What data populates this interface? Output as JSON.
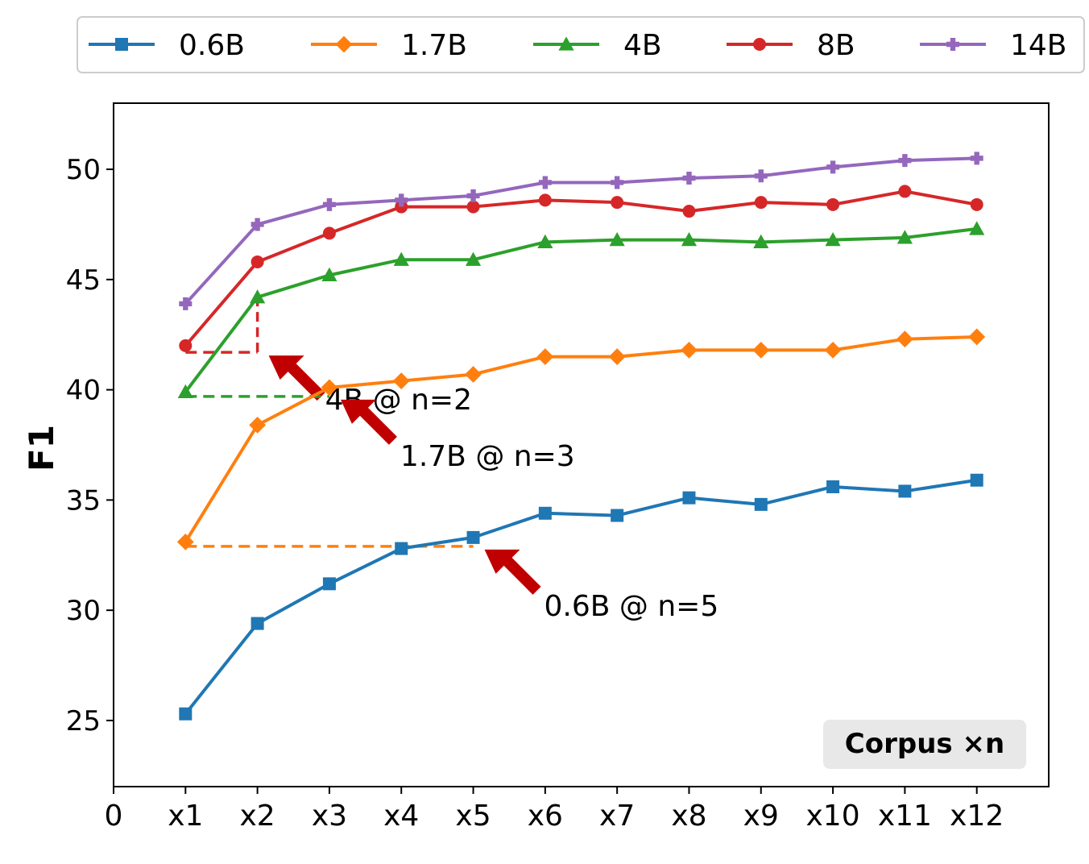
{
  "chart_data": {
    "type": "line",
    "title": "",
    "xlabel": "",
    "ylabel": "F1",
    "x_ticks": [
      "0",
      "x1",
      "x2",
      "x3",
      "x4",
      "x5",
      "x6",
      "x7",
      "x8",
      "x9",
      "x10",
      "x11",
      "x12"
    ],
    "x": [
      1,
      2,
      3,
      4,
      5,
      6,
      7,
      8,
      9,
      10,
      11,
      12
    ],
    "xlim": [
      0,
      13
    ],
    "ylim": [
      22,
      53
    ],
    "y_ticks": [
      25,
      30,
      35,
      40,
      45,
      50
    ],
    "grid": false,
    "legend_position": "top",
    "series": [
      {
        "name": "0.6B",
        "color": "#1f77b4",
        "marker": "square",
        "values": [
          25.3,
          29.4,
          31.2,
          32.8,
          33.3,
          34.4,
          34.3,
          35.1,
          34.8,
          35.6,
          35.4,
          35.9
        ]
      },
      {
        "name": "1.7B",
        "color": "#ff7f0e",
        "marker": "diamond",
        "values": [
          33.1,
          38.4,
          40.1,
          40.4,
          40.7,
          41.5,
          41.5,
          41.8,
          41.8,
          41.8,
          42.3,
          42.4
        ]
      },
      {
        "name": "4B",
        "color": "#2ca02c",
        "marker": "triangle",
        "values": [
          39.9,
          44.2,
          45.2,
          45.9,
          45.9,
          46.7,
          46.8,
          46.8,
          46.7,
          46.8,
          46.9,
          47.3
        ]
      },
      {
        "name": "8B",
        "color": "#d62728",
        "marker": "circle",
        "values": [
          42.0,
          45.8,
          47.1,
          48.3,
          48.3,
          48.6,
          48.5,
          48.1,
          48.5,
          48.4,
          49.0,
          48.4
        ]
      },
      {
        "name": "14B",
        "color": "#9467bd",
        "marker": "plus",
        "values": [
          43.9,
          47.5,
          48.4,
          48.6,
          48.8,
          49.4,
          49.4,
          49.6,
          49.7,
          50.1,
          50.4,
          50.5
        ]
      }
    ],
    "annotations": [
      {
        "text": "4B @ n=2",
        "reference_series": "8B",
        "target_series": "4B",
        "x_from": 1,
        "x_to": 2,
        "level": 41.7,
        "color": "#d62728"
      },
      {
        "text": "1.7B @ n=3",
        "reference_series": "4B",
        "target_series": "1.7B",
        "x_from": 1,
        "x_to": 3,
        "level": 39.7,
        "color": "#2ca02c"
      },
      {
        "text": "0.6B @ n=5",
        "reference_series": "1.7B",
        "target_series": "0.6B",
        "x_from": 1,
        "x_to": 5,
        "level": 32.9,
        "color": "#ff7f0e"
      }
    ],
    "badge": "Corpus ×n",
    "arrow_color": "#c00000"
  }
}
